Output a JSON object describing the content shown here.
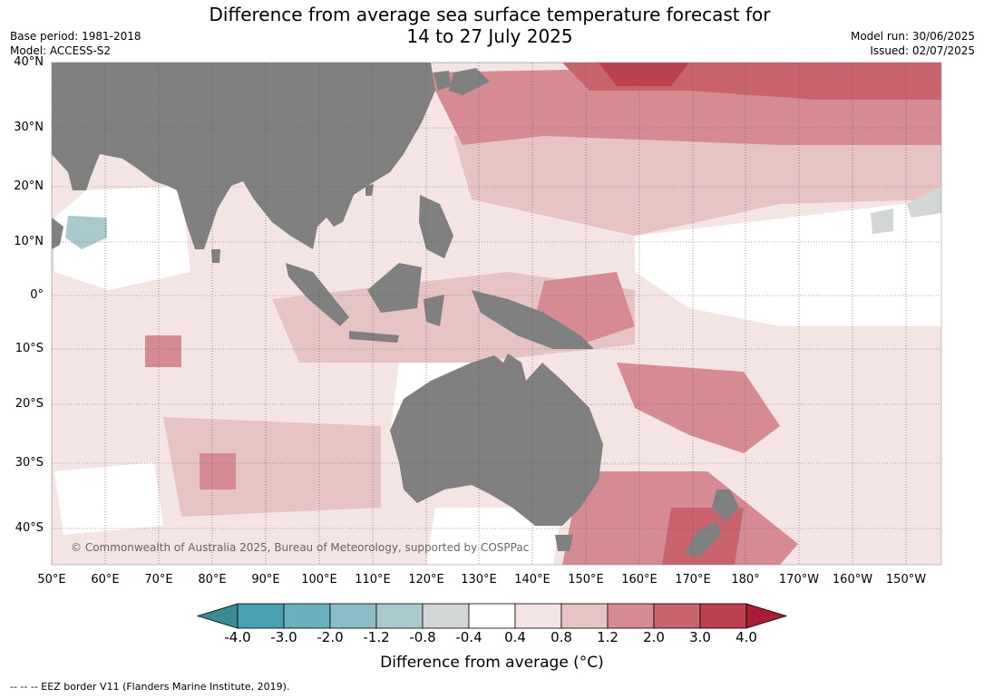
{
  "title_line1": "Difference from average sea surface temperature forecast for",
  "title_line2": "14 to 27 July 2025",
  "base_period": "Base period: 1981-2018",
  "model": "Model: ACCESS-S2",
  "model_run": "Model run: 30/06/2025",
  "issued": "Issued: 02/07/2025",
  "lat_labels": [
    "40°N",
    "30°N",
    "20°N",
    "10°N",
    "0°",
    "10°S",
    "20°S",
    "30°S",
    "40°S"
  ],
  "lon_labels": [
    "50°E",
    "60°E",
    "70°E",
    "80°E",
    "90°E",
    "100°E",
    "110°E",
    "120°E",
    "130°E",
    "140°E",
    "150°E",
    "160°E",
    "170°E",
    "180°",
    "170°W",
    "160°W",
    "150°W"
  ],
  "copyright": "© Commonwealth of Australia 2025, Bureau of Meteorology, supported by COSPPac",
  "colorbar": {
    "ticks": [
      "-4.0",
      "-3.0",
      "-2.0",
      "-1.2",
      "-0.8",
      "-0.4",
      "0.4",
      "0.8",
      "1.2",
      "2.0",
      "3.0",
      "4.0"
    ],
    "colors": [
      "#3d8a95",
      "#4aa0b0",
      "#6aafbc",
      "#8bbcc7",
      "#aac9ce",
      "#d3d6d6",
      "#ffffff",
      "#f4e4e3",
      "#e6c4c3",
      "#d68b93",
      "#c9646f",
      "#bb4150",
      "#a71d35"
    ],
    "label": "Difference from average (°C)"
  },
  "footer": "--  --  -- EEZ border V11 (Flanders Marine Institute, 2019).",
  "colors": {
    "land": "#808080",
    "ocean_base": "#f4e4e3"
  }
}
